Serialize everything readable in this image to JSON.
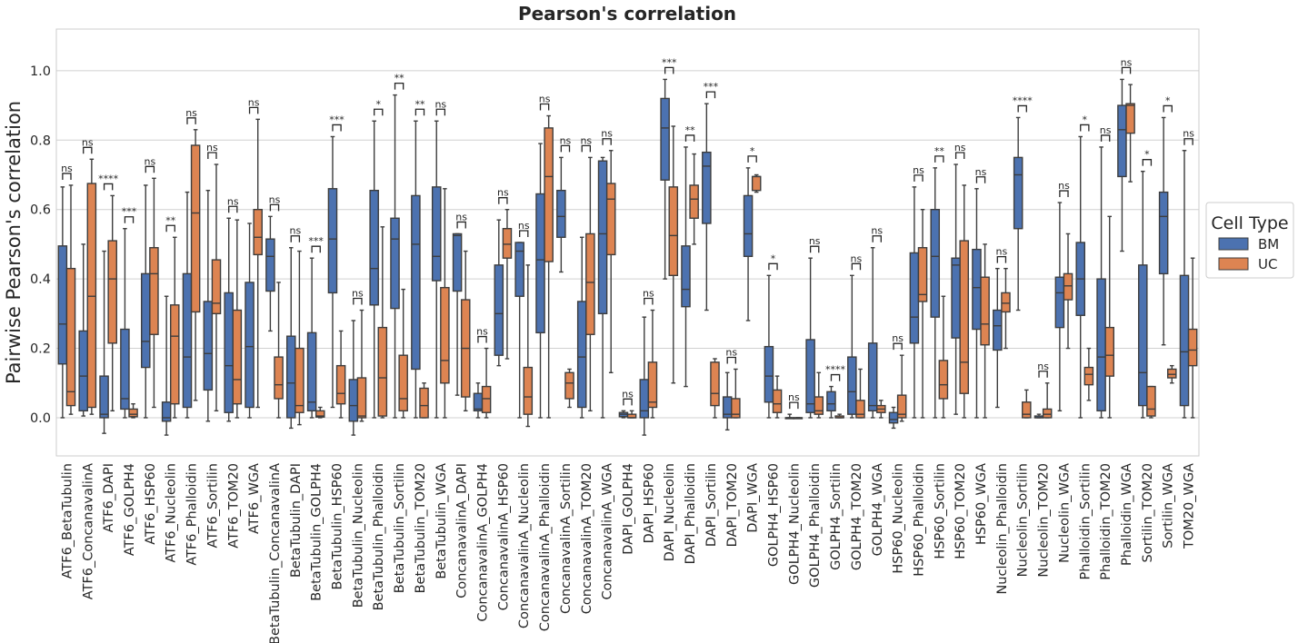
{
  "chart_data": {
    "type": "boxplot",
    "title": "Pearson's correlation",
    "ylabel": "Pairwise Pearson's correlation",
    "xlabel": "",
    "ylim": [
      -0.11,
      1.12
    ],
    "yticks": [
      0.0,
      0.2,
      0.4,
      0.6,
      0.8,
      1.0
    ],
    "grid": "horizontal",
    "legend": {
      "title": "Cell Type",
      "placement": "right"
    },
    "series": [
      {
        "name": "BM",
        "color": "#4c72b0"
      },
      {
        "name": "UC",
        "color": "#dd8452"
      }
    ],
    "categories": [
      {
        "label": "ATF6_BetaTubulin",
        "sig": "ns",
        "bm": [
          0.0,
          0.155,
          0.27,
          0.495,
          0.665
        ],
        "uc": [
          0.01,
          0.035,
          0.075,
          0.43,
          0.67
        ]
      },
      {
        "label": "ATF6_ConcanavalinA",
        "sig": "ns",
        "bm": [
          0.005,
          0.02,
          0.12,
          0.25,
          0.5
        ],
        "uc": [
          0.01,
          0.03,
          0.35,
          0.675,
          0.745
        ]
      },
      {
        "label": "ATF6_DAPI",
        "sig": "****",
        "bm": [
          -0.045,
          0.0,
          0.01,
          0.12,
          0.48
        ],
        "uc": [
          0.02,
          0.215,
          0.4,
          0.51,
          0.64
        ]
      },
      {
        "label": "ATF6_GOLPH4",
        "sig": "***",
        "bm": [
          0.0,
          0.025,
          0.055,
          0.255,
          0.545
        ],
        "uc": [
          0.0,
          0.003,
          0.01,
          0.025,
          0.04
        ]
      },
      {
        "label": "ATF6_HSP60",
        "sig": "ns",
        "bm": [
          0.0,
          0.145,
          0.22,
          0.415,
          0.67
        ],
        "uc": [
          0.03,
          0.24,
          0.415,
          0.49,
          0.69
        ]
      },
      {
        "label": "ATF6_Nucleolin",
        "sig": "**",
        "bm": [
          -0.05,
          -0.01,
          0.0,
          0.045,
          0.35
        ],
        "uc": [
          0.0,
          0.04,
          0.235,
          0.325,
          0.52
        ]
      },
      {
        "label": "ATF6_Phalloidin",
        "sig": "ns",
        "bm": [
          0.0,
          0.03,
          0.175,
          0.415,
          0.65
        ],
        "uc": [
          0.05,
          0.305,
          0.59,
          0.785,
          0.83
        ]
      },
      {
        "label": "ATF6_Sortilin",
        "sig": "ns",
        "bm": [
          -0.01,
          0.08,
          0.185,
          0.335,
          0.655
        ],
        "uc": [
          0.02,
          0.3,
          0.33,
          0.455,
          0.73
        ]
      },
      {
        "label": "ATF6_TOM20",
        "sig": "ns",
        "bm": [
          -0.01,
          0.015,
          0.15,
          0.36,
          0.575
        ],
        "uc": [
          0.0,
          0.04,
          0.11,
          0.31,
          0.57
        ]
      },
      {
        "label": "ATF6_WGA",
        "sig": "ns",
        "bm": [
          0.0,
          0.03,
          0.205,
          0.39,
          0.56
        ],
        "uc": [
          0.03,
          0.47,
          0.52,
          0.6,
          0.86
        ]
      },
      {
        "label": "BetaTubulin_ConcanavalinA",
        "sig": "ns",
        "bm": [
          0.25,
          0.365,
          0.465,
          0.515,
          0.58
        ],
        "uc": [
          0.0,
          0.055,
          0.095,
          0.175,
          0.39
        ]
      },
      {
        "label": "BetaTubulin_DAPI",
        "sig": "ns",
        "bm": [
          -0.03,
          0.0,
          0.1,
          0.235,
          0.49
        ],
        "uc": [
          -0.02,
          0.015,
          0.035,
          0.2,
          0.48
        ]
      },
      {
        "label": "BetaTubulin_GOLPH4",
        "sig": "***",
        "bm": [
          0.0,
          0.02,
          0.045,
          0.245,
          0.46
        ],
        "uc": [
          0.0,
          0.002,
          0.005,
          0.02,
          0.03
        ]
      },
      {
        "label": "BetaTubulin_HSP60",
        "sig": "***",
        "bm": [
          0.03,
          0.36,
          0.515,
          0.66,
          0.81
        ],
        "uc": [
          0.0,
          0.04,
          0.07,
          0.15,
          0.25
        ]
      },
      {
        "label": "BetaTubulin_Nucleolin",
        "sig": "ns",
        "bm": [
          -0.05,
          -0.01,
          0.035,
          0.11,
          0.28
        ],
        "uc": [
          -0.01,
          0.0,
          0.005,
          0.115,
          0.31
        ]
      },
      {
        "label": "BetaTubulin_Phalloidin",
        "sig": "*",
        "bm": [
          0.0,
          0.325,
          0.43,
          0.655,
          0.855
        ],
        "uc": [
          0.0,
          0.005,
          0.115,
          0.26,
          0.55
        ]
      },
      {
        "label": "BetaTubulin_Sortilin",
        "sig": "**",
        "bm": [
          0.0,
          0.315,
          0.515,
          0.575,
          0.93
        ],
        "uc": [
          0.0,
          0.02,
          0.055,
          0.18,
          0.37
        ]
      },
      {
        "label": "BetaTubulin_TOM20",
        "sig": "**",
        "bm": [
          0.0,
          0.14,
          0.5,
          0.64,
          0.855
        ],
        "uc": [
          0.0,
          0.0,
          0.035,
          0.085,
          0.1
        ]
      },
      {
        "label": "BetaTubulin_WGA",
        "sig": "ns",
        "bm": [
          0.0,
          0.395,
          0.465,
          0.665,
          0.855
        ],
        "uc": [
          0.0,
          0.1,
          0.165,
          0.375,
          0.66
        ]
      },
      {
        "label": "ConcanavalinA_DAPI",
        "sig": "ns",
        "bm": [
          0.065,
          0.365,
          0.525,
          0.53,
          0.53
        ],
        "uc": [
          0.02,
          0.06,
          0.2,
          0.34,
          0.48
        ]
      },
      {
        "label": "ConcanavalinA_GOLPH4",
        "sig": "ns",
        "bm": [
          0.0,
          0.02,
          0.025,
          0.07,
          0.1
        ],
        "uc": [
          0.0,
          0.015,
          0.055,
          0.09,
          0.2
        ]
      },
      {
        "label": "ConcanavalinA_HSP60",
        "sig": "ns",
        "bm": [
          0.15,
          0.18,
          0.3,
          0.44,
          0.57
        ],
        "uc": [
          0.17,
          0.46,
          0.5,
          0.545,
          0.6
        ]
      },
      {
        "label": "ConcanavalinA_Nucleolin",
        "sig": "ns",
        "bm": [
          0.0,
          0.35,
          0.48,
          0.505,
          0.505
        ],
        "uc": [
          -0.025,
          0.01,
          0.06,
          0.145,
          0.44
        ]
      },
      {
        "label": "ConcanavalinA_Phalloidin",
        "sig": "ns",
        "bm": [
          0.0,
          0.245,
          0.455,
          0.645,
          0.79
        ],
        "uc": [
          0.0,
          0.45,
          0.695,
          0.835,
          0.87
        ]
      },
      {
        "label": "ConcanavalinA_Sortilin",
        "sig": "ns",
        "bm": [
          0.42,
          0.52,
          0.58,
          0.655,
          0.75
        ],
        "uc": [
          0.03,
          0.055,
          0.1,
          0.13,
          0.14
        ]
      },
      {
        "label": "ConcanavalinA_TOM20",
        "sig": "ns",
        "bm": [
          0.0,
          0.03,
          0.175,
          0.335,
          0.52
        ],
        "uc": [
          0.02,
          0.24,
          0.39,
          0.53,
          0.75
        ]
      },
      {
        "label": "ConcanavalinA_WGA",
        "sig": "ns",
        "bm": [
          0.0,
          0.3,
          0.53,
          0.74,
          0.75
        ],
        "uc": [
          0.13,
          0.47,
          0.63,
          0.675,
          0.77
        ]
      },
      {
        "label": "DAPI_GOLPH4",
        "sig": "ns",
        "bm": [
          0.0,
          0.003,
          0.01,
          0.015,
          0.02
        ],
        "uc": [
          0.0,
          0.0,
          0.0,
          0.01,
          0.02
        ]
      },
      {
        "label": "DAPI_HSP60",
        "sig": "ns",
        "bm": [
          -0.05,
          0.0,
          0.02,
          0.11,
          0.29
        ],
        "uc": [
          0.0,
          0.03,
          0.045,
          0.16,
          0.31
        ]
      },
      {
        "label": "DAPI_Nucleolin",
        "sig": "***",
        "bm": [
          0.4,
          0.685,
          0.835,
          0.92,
          0.975
        ],
        "uc": [
          0.1,
          0.41,
          0.525,
          0.665,
          0.84
        ]
      },
      {
        "label": "DAPI_Phalloidin",
        "sig": "**",
        "bm": [
          0.09,
          0.32,
          0.37,
          0.495,
          0.78
        ],
        "uc": [
          0.5,
          0.575,
          0.63,
          0.67,
          0.76
        ]
      },
      {
        "label": "DAPI_Sortilin",
        "sig": "***",
        "bm": [
          0.31,
          0.56,
          0.725,
          0.765,
          0.905
        ],
        "uc": [
          0.0,
          0.035,
          0.07,
          0.16,
          0.17
        ]
      },
      {
        "label": "DAPI_TOM20",
        "sig": "ns",
        "bm": [
          -0.035,
          0.0,
          0.01,
          0.06,
          0.13
        ],
        "uc": [
          0.0,
          0.0,
          0.01,
          0.055,
          0.14
        ]
      },
      {
        "label": "DAPI_WGA",
        "sig": "*",
        "bm": [
          0.28,
          0.465,
          0.53,
          0.64,
          0.72
        ],
        "uc": [
          0.65,
          0.655,
          0.695,
          0.695,
          0.7
        ]
      },
      {
        "label": "GOLPH4_HSP60",
        "sig": "*",
        "bm": [
          0.0,
          0.045,
          0.12,
          0.205,
          0.41
        ],
        "uc": [
          0.0,
          0.015,
          0.04,
          0.08,
          0.12
        ]
      },
      {
        "label": "GOLPH4_Nucleolin",
        "sig": "ns",
        "bm": [
          0.0,
          0.0,
          0.0,
          0.0,
          0.01
        ],
        "uc": [
          0.0,
          0.0,
          0.0,
          0.0,
          0.0
        ]
      },
      {
        "label": "GOLPH4_Phalloidin",
        "sig": "ns",
        "bm": [
          0.0,
          0.015,
          0.04,
          0.225,
          0.46
        ],
        "uc": [
          0.0,
          0.01,
          0.02,
          0.06,
          0.13
        ]
      },
      {
        "label": "GOLPH4_Sortilin",
        "sig": "****",
        "bm": [
          0.0,
          0.02,
          0.04,
          0.075,
          0.09
        ],
        "uc": [
          0.0,
          0.0,
          0.0,
          0.005,
          0.01
        ]
      },
      {
        "label": "GOLPH4_TOM20",
        "sig": "ns",
        "bm": [
          0.0,
          0.01,
          0.075,
          0.175,
          0.41
        ],
        "uc": [
          0.0,
          0.0,
          0.01,
          0.05,
          0.14
        ]
      },
      {
        "label": "GOLPH4_WGA",
        "sig": "ns",
        "bm": [
          0.0,
          0.02,
          0.035,
          0.215,
          0.49
        ],
        "uc": [
          0.0,
          0.015,
          0.025,
          0.035,
          0.05
        ]
      },
      {
        "label": "HSP60_Nucleolin",
        "sig": "ns",
        "bm": [
          -0.03,
          -0.015,
          -0.005,
          0.015,
          0.03
        ],
        "uc": [
          -0.01,
          0.0,
          0.01,
          0.065,
          0.18
        ]
      },
      {
        "label": "HSP60_Phalloidin",
        "sig": "ns",
        "bm": [
          0.0,
          0.215,
          0.29,
          0.475,
          0.665
        ],
        "uc": [
          0.0,
          0.335,
          0.355,
          0.49,
          0.6
        ]
      },
      {
        "label": "HSP60_Sortilin",
        "sig": "**",
        "bm": [
          0.0,
          0.29,
          0.465,
          0.6,
          0.72
        ],
        "uc": [
          0.0,
          0.055,
          0.095,
          0.165,
          0.35
        ]
      },
      {
        "label": "HSP60_TOM20",
        "sig": "ns",
        "bm": [
          0.01,
          0.23,
          0.44,
          0.46,
          0.73
        ],
        "uc": [
          0.0,
          0.07,
          0.16,
          0.51,
          0.67
        ]
      },
      {
        "label": "HSP60_WGA",
        "sig": "ns",
        "bm": [
          0.0,
          0.255,
          0.375,
          0.485,
          0.66
        ],
        "uc": [
          0.0,
          0.21,
          0.27,
          0.405,
          0.5
        ]
      },
      {
        "label": "Nucleolin_Phalloidin",
        "sig": "ns",
        "bm": [
          0.03,
          0.195,
          0.265,
          0.31,
          0.43
        ],
        "uc": [
          0.2,
          0.305,
          0.33,
          0.36,
          0.43
        ]
      },
      {
        "label": "Nucleolin_Sortilin",
        "sig": "****",
        "bm": [
          0.31,
          0.545,
          0.7,
          0.75,
          0.865
        ],
        "uc": [
          0.0,
          0.0,
          0.01,
          0.045,
          0.08
        ]
      },
      {
        "label": "Nucleolin_TOM20",
        "sig": "ns",
        "bm": [
          0.0,
          0.0,
          0.0,
          0.005,
          0.01
        ],
        "uc": [
          0.0,
          0.0,
          0.01,
          0.025,
          0.1
        ]
      },
      {
        "label": "Nucleolin_WGA",
        "sig": "ns",
        "bm": [
          0.02,
          0.26,
          0.36,
          0.405,
          0.62
        ],
        "uc": [
          0.2,
          0.34,
          0.38,
          0.415,
          0.53
        ]
      },
      {
        "label": "Phalloidin_Sortilin",
        "sig": "*",
        "bm": [
          0.0,
          0.295,
          0.4,
          0.505,
          0.81
        ],
        "uc": [
          0.05,
          0.095,
          0.125,
          0.145,
          0.2
        ]
      },
      {
        "label": "Phalloidin_TOM20",
        "sig": "ns",
        "bm": [
          0.0,
          0.02,
          0.175,
          0.4,
          0.78
        ],
        "uc": [
          0.0,
          0.12,
          0.18,
          0.26,
          0.58
        ]
      },
      {
        "label": "Phalloidin_WGA",
        "sig": "ns",
        "bm": [
          0.48,
          0.695,
          0.83,
          0.9,
          0.975
        ],
        "uc": [
          0.68,
          0.82,
          0.9,
          0.905,
          0.96
        ]
      },
      {
        "label": "Sortilin_TOM20",
        "sig": "*",
        "bm": [
          0.0,
          0.035,
          0.13,
          0.44,
          0.71
        ],
        "uc": [
          0.0,
          0.005,
          0.025,
          0.09,
          0.09
        ]
      },
      {
        "label": "Sortilin_WGA",
        "sig": "*",
        "bm": [
          0.21,
          0.415,
          0.58,
          0.65,
          0.865
        ],
        "uc": [
          0.1,
          0.115,
          0.125,
          0.14,
          0.15
        ]
      },
      {
        "label": "TOM20_WGA",
        "sig": "ns",
        "bm": [
          0.0,
          0.035,
          0.19,
          0.41,
          0.77
        ],
        "uc": [
          0.0,
          0.15,
          0.195,
          0.255,
          0.46
        ]
      }
    ]
  }
}
